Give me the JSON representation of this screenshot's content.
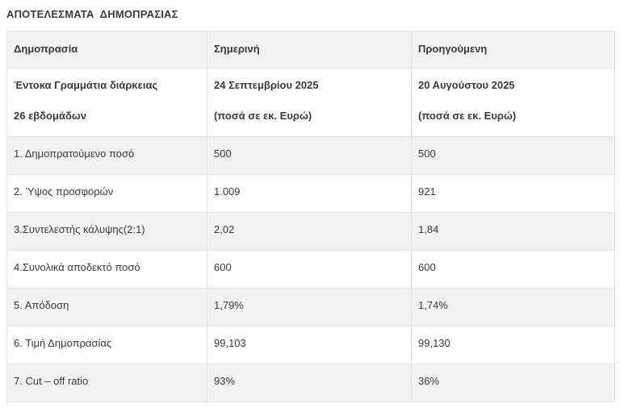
{
  "page_title": "ΑΠΟΤΕΛΕΣΜΑΤΑ  ΔΗΜΟΠΡΑΣΙΑΣ",
  "table": {
    "header": [
      "Δημοπρασία",
      "Σημερινή",
      "Προηγούμενη"
    ],
    "subheader": {
      "auction": [
        "Έντοκα Γραμμάτια διάρκειας",
        "26 εβδομάδων"
      ],
      "current": [
        "24 Σεπτεμβρίου 2025",
        "(ποσά σε εκ. Ευρώ)"
      ],
      "previous": [
        "20 Αυγούστου 2025",
        "(ποσά σε εκ. Ευρώ)"
      ]
    },
    "rows": [
      {
        "label": "1. Δημοπρατούμενο ποσό",
        "current": "500",
        "previous": "500"
      },
      {
        "label": "2. Ύψος προσφορών",
        "current": "1.009",
        "previous": "921"
      },
      {
        "label": "3.Συντελεστής κάλυψης(2:1)",
        "current": "2,02",
        "previous": "1,84"
      },
      {
        "label": "4.Συνολικά αποδεκτό ποσό",
        "current": "600",
        "previous": "600"
      },
      {
        "label": "5. Απόδοση",
        "current": "1,79%",
        "previous": "1,74%"
      },
      {
        "label": "6. Τιμή Δημοπρασίας",
        "current": "99,103",
        "previous": "99,130"
      },
      {
        "label": "7. Cut – off ratio",
        "current": "93%",
        "previous": "36%"
      }
    ]
  },
  "colors": {
    "page_bg": "#ffffff",
    "header_bg": "#f2f2f2",
    "row_alt_bg": "#f2f2f2",
    "border": "#e3e3e3",
    "text": "#3b3b3b"
  }
}
